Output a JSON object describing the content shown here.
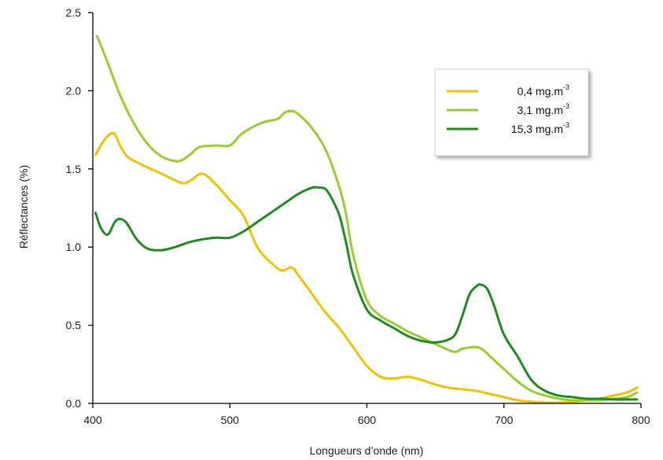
{
  "chart_data": {
    "type": "line",
    "xlabel": "Longueurs d’onde (nm)",
    "ylabel": "Réflectances (%)",
    "xlim": [
      400,
      800
    ],
    "ylim": [
      0,
      2.5
    ],
    "xticks": [
      400,
      500,
      600,
      700,
      800
    ],
    "yticks": [
      0,
      0.5,
      1,
      1.5,
      2,
      2.5
    ],
    "xtick_labels": [
      "400",
      "500",
      "600",
      "700",
      "800"
    ],
    "ytick_labels": [
      "0.0",
      "0.5",
      "1.0",
      "1.5",
      "2.0",
      "2.5"
    ],
    "grid": false,
    "legend_position": "top-right",
    "series": [
      {
        "name": "0,4 mg.m",
        "name_sup": "-3",
        "color": "#f2c200",
        "x": [
          402,
          408,
          415,
          420,
          425,
          435,
          450,
          465,
          472,
          480,
          490,
          500,
          510,
          520,
          530,
          538,
          545,
          550,
          560,
          570,
          580,
          590,
          600,
          610,
          620,
          630,
          640,
          650,
          660,
          670,
          680,
          690,
          700,
          710,
          720,
          730,
          740,
          750,
          760,
          770,
          780,
          790,
          797
        ],
        "y": [
          1.59,
          1.68,
          1.73,
          1.65,
          1.58,
          1.53,
          1.47,
          1.41,
          1.43,
          1.47,
          1.4,
          1.3,
          1.2,
          1.0,
          0.9,
          0.85,
          0.87,
          0.82,
          0.7,
          0.58,
          0.48,
          0.36,
          0.24,
          0.17,
          0.16,
          0.17,
          0.15,
          0.12,
          0.1,
          0.09,
          0.08,
          0.06,
          0.04,
          0.02,
          0.01,
          0.005,
          0.005,
          0.01,
          0.02,
          0.03,
          0.05,
          0.07,
          0.1
        ]
      },
      {
        "name": "3,1 mg.m",
        "name_sup": "-3",
        "color": "#9acd32",
        "x": [
          403,
          410,
          420,
          430,
          440,
          450,
          460,
          466,
          472,
          478,
          490,
          500,
          508,
          515,
          525,
          535,
          540,
          545,
          550,
          560,
          570,
          580,
          585,
          590,
          600,
          610,
          620,
          630,
          640,
          650,
          660,
          665,
          670,
          680,
          685,
          690,
          700,
          710,
          720,
          730,
          740,
          750,
          760,
          770,
          780,
          790,
          797
        ],
        "y": [
          2.35,
          2.2,
          1.97,
          1.79,
          1.66,
          1.58,
          1.55,
          1.56,
          1.6,
          1.64,
          1.65,
          1.65,
          1.72,
          1.76,
          1.8,
          1.82,
          1.86,
          1.87,
          1.85,
          1.76,
          1.62,
          1.38,
          1.2,
          0.95,
          0.66,
          0.56,
          0.51,
          0.46,
          0.42,
          0.38,
          0.34,
          0.33,
          0.35,
          0.36,
          0.34,
          0.3,
          0.22,
          0.14,
          0.08,
          0.05,
          0.03,
          0.02,
          0.02,
          0.02,
          0.03,
          0.04,
          0.07
        ]
      },
      {
        "name": "15,3 mg.m",
        "name_sup": "-3",
        "color": "#1e8c1e",
        "x": [
          402,
          406,
          411,
          416,
          420,
          425,
          432,
          440,
          450,
          460,
          470,
          480,
          490,
          500,
          510,
          520,
          530,
          540,
          550,
          560,
          565,
          570,
          575,
          580,
          585,
          590,
          600,
          610,
          620,
          630,
          640,
          650,
          660,
          665,
          670,
          675,
          680,
          683,
          688,
          693,
          700,
          710,
          720,
          730,
          740,
          750,
          760,
          770,
          780,
          790,
          797
        ],
        "y": [
          1.22,
          1.12,
          1.08,
          1.16,
          1.18,
          1.15,
          1.05,
          0.99,
          0.98,
          1.0,
          1.03,
          1.05,
          1.06,
          1.06,
          1.1,
          1.16,
          1.22,
          1.28,
          1.34,
          1.38,
          1.38,
          1.37,
          1.3,
          1.2,
          1.02,
          0.82,
          0.6,
          0.53,
          0.48,
          0.43,
          0.4,
          0.39,
          0.41,
          0.45,
          0.57,
          0.7,
          0.75,
          0.76,
          0.73,
          0.62,
          0.44,
          0.3,
          0.15,
          0.08,
          0.05,
          0.04,
          0.03,
          0.03,
          0.025,
          0.025,
          0.025
        ]
      }
    ]
  }
}
